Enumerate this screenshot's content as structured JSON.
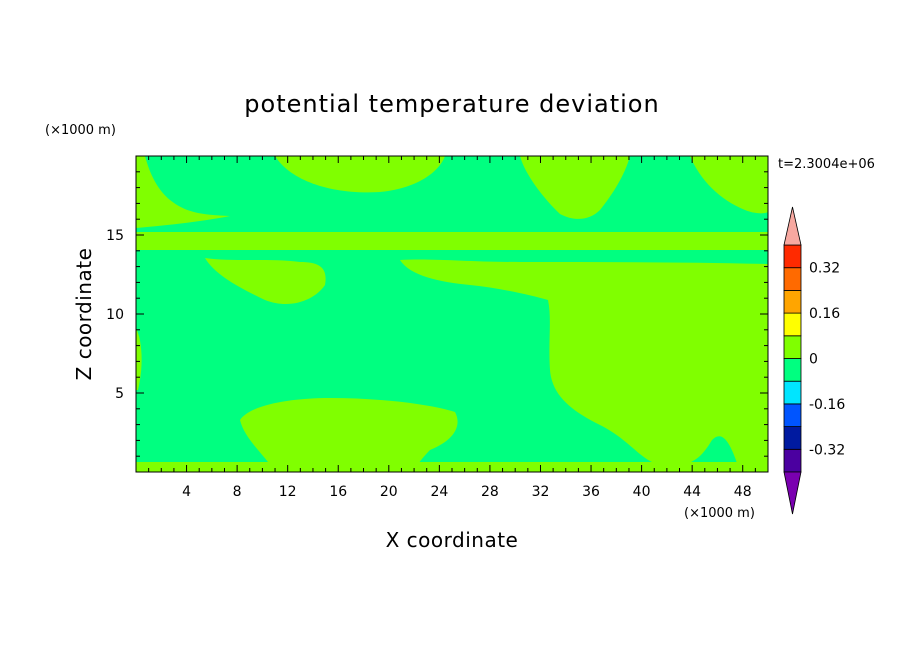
{
  "chart_data": {
    "type": "heatmap",
    "title": "potential temperature deviation",
    "time_label": "t=2.3004e+06",
    "xlabel": "X coordinate",
    "ylabel": "Z coordinate",
    "x_unit": "(×1000 m)",
    "y_unit": "(×1000 m)",
    "xlim": [
      0,
      50
    ],
    "ylim": [
      0,
      20
    ],
    "x_ticks": [
      4,
      8,
      12,
      16,
      20,
      24,
      28,
      32,
      36,
      40,
      44,
      48
    ],
    "y_ticks": [
      5,
      10,
      15
    ],
    "colorbar": {
      "levels": [
        -0.4,
        -0.32,
        -0.24,
        -0.16,
        -0.08,
        0,
        0.08,
        0.16,
        0.24,
        0.32,
        0.4
      ],
      "labels": [
        "0.32",
        "0.16",
        "0",
        "-0.16",
        "-0.32"
      ],
      "label_values": [
        0.32,
        0.16,
        0,
        -0.16,
        -0.32
      ],
      "colors": [
        "#4b00a0",
        "#001aa0",
        "#0055ff",
        "#00e5ff",
        "#00ff80",
        "#80ff00",
        "#ffff00",
        "#ffa500",
        "#ff6a00",
        "#ff2a00"
      ],
      "under_color": "#7a00b0",
      "over_color": "#f7a8a0"
    },
    "background_color": "#00ff80",
    "positive_color": "#80ff00"
  }
}
